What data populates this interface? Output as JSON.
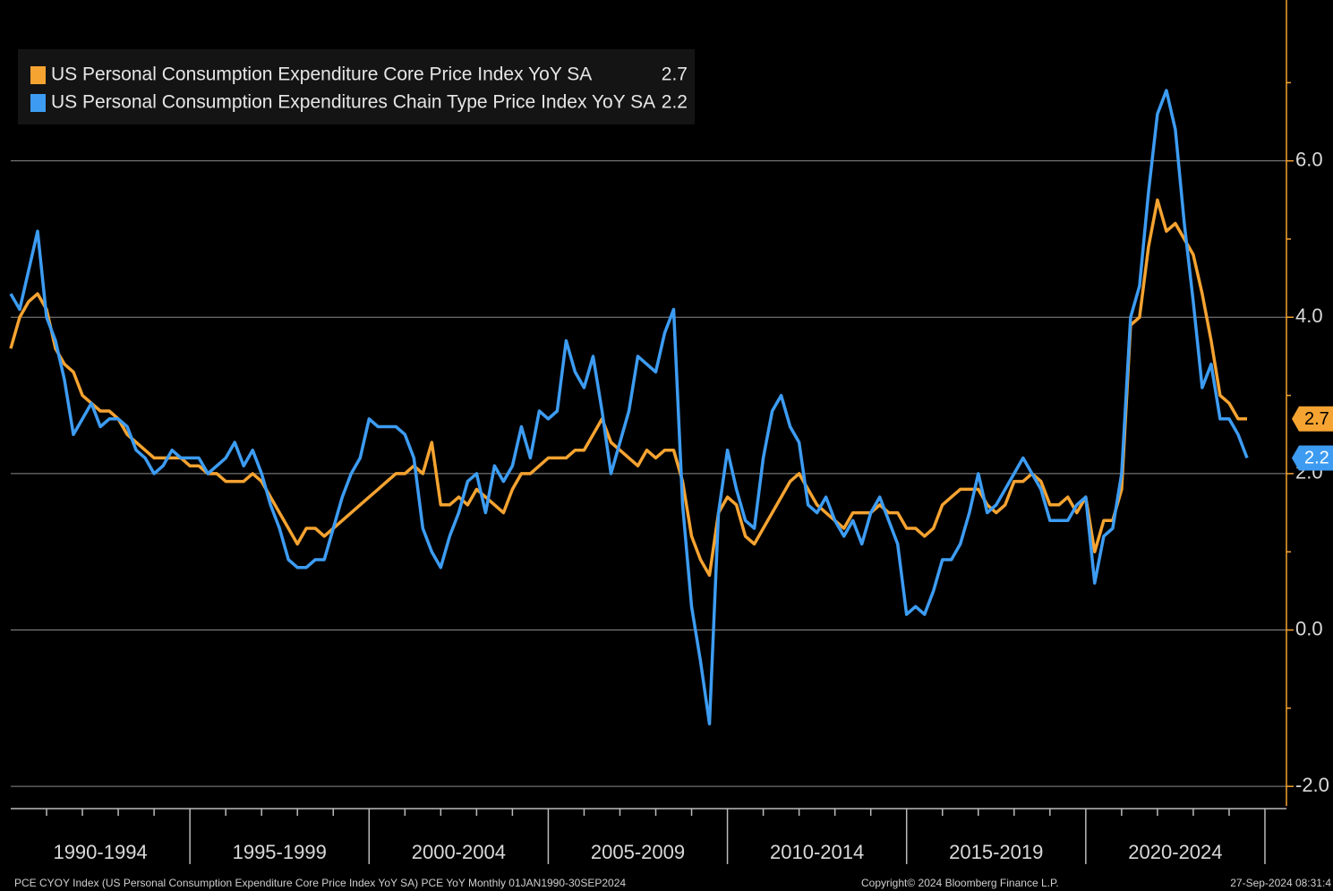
{
  "chart_data": {
    "type": "line",
    "x": [
      1990,
      1990.25,
      1990.5,
      1990.75,
      1991,
      1991.25,
      1991.5,
      1991.75,
      1992,
      1992.25,
      1992.5,
      1992.75,
      1993,
      1993.25,
      1993.5,
      1993.75,
      1994,
      1994.25,
      1994.5,
      1994.75,
      1995,
      1995.25,
      1995.5,
      1995.75,
      1996,
      1996.25,
      1996.5,
      1996.75,
      1997,
      1997.25,
      1997.5,
      1997.75,
      1998,
      1998.25,
      1998.5,
      1998.75,
      1999,
      1999.25,
      1999.5,
      1999.75,
      2000,
      2000.25,
      2000.5,
      2000.75,
      2001,
      2001.25,
      2001.5,
      2001.75,
      2002,
      2002.25,
      2002.5,
      2002.75,
      2003,
      2003.25,
      2003.5,
      2003.75,
      2004,
      2004.25,
      2004.5,
      2004.75,
      2005,
      2005.25,
      2005.5,
      2005.75,
      2006,
      2006.25,
      2006.5,
      2006.75,
      2007,
      2007.25,
      2007.5,
      2007.75,
      2008,
      2008.25,
      2008.5,
      2008.75,
      2009,
      2009.25,
      2009.5,
      2009.75,
      2010,
      2010.25,
      2010.5,
      2010.75,
      2011,
      2011.25,
      2011.5,
      2011.75,
      2012,
      2012.25,
      2012.5,
      2012.75,
      2013,
      2013.25,
      2013.5,
      2013.75,
      2014,
      2014.25,
      2014.5,
      2014.75,
      2015,
      2015.25,
      2015.5,
      2015.75,
      2016,
      2016.25,
      2016.5,
      2016.75,
      2017,
      2017.25,
      2017.5,
      2017.75,
      2018,
      2018.25,
      2018.5,
      2018.75,
      2019,
      2019.25,
      2019.5,
      2019.75,
      2020,
      2020.25,
      2020.5,
      2020.75,
      2021,
      2021.25,
      2021.5,
      2021.75,
      2022,
      2022.25,
      2022.5,
      2022.75,
      2023,
      2023.25,
      2023.5,
      2023.75,
      2024,
      2024.25,
      2024.5
    ],
    "series": [
      {
        "name": "US Personal Consumption Expenditure Core Price Index YoY SA",
        "color": "#f5a331",
        "values": [
          3.6,
          4.0,
          4.2,
          4.3,
          4.1,
          3.6,
          3.4,
          3.3,
          3.0,
          2.9,
          2.8,
          2.8,
          2.7,
          2.5,
          2.4,
          2.3,
          2.2,
          2.2,
          2.2,
          2.2,
          2.1,
          2.1,
          2.0,
          2.0,
          1.9,
          1.9,
          1.9,
          2.0,
          1.9,
          1.7,
          1.5,
          1.3,
          1.1,
          1.3,
          1.3,
          1.2,
          1.3,
          1.4,
          1.5,
          1.6,
          1.7,
          1.8,
          1.9,
          2.0,
          2.0,
          2.1,
          2.0,
          2.4,
          1.6,
          1.6,
          1.7,
          1.6,
          1.8,
          1.7,
          1.6,
          1.5,
          1.8,
          2.0,
          2.0,
          2.1,
          2.2,
          2.2,
          2.2,
          2.3,
          2.3,
          2.5,
          2.7,
          2.4,
          2.3,
          2.2,
          2.1,
          2.3,
          2.2,
          2.3,
          2.3,
          1.9,
          1.2,
          0.9,
          0.7,
          1.5,
          1.7,
          1.6,
          1.2,
          1.1,
          1.3,
          1.5,
          1.7,
          1.9,
          2.0,
          1.8,
          1.6,
          1.5,
          1.4,
          1.3,
          1.5,
          1.5,
          1.5,
          1.6,
          1.5,
          1.5,
          1.3,
          1.3,
          1.2,
          1.3,
          1.6,
          1.7,
          1.8,
          1.8,
          1.8,
          1.6,
          1.5,
          1.6,
          1.9,
          1.9,
          2.0,
          1.9,
          1.6,
          1.6,
          1.7,
          1.5,
          1.7,
          1.0,
          1.4,
          1.4,
          1.8,
          3.9,
          4.0,
          4.9,
          5.5,
          5.1,
          5.2,
          5.0,
          4.8,
          4.3,
          3.7,
          3.0,
          2.9,
          2.7,
          2.7
        ]
      },
      {
        "name": "US Personal Consumption Expenditures Chain Type Price Index YoY SA",
        "color": "#3d9cf2",
        "values": [
          4.3,
          4.1,
          4.6,
          5.1,
          4.0,
          3.7,
          3.2,
          2.5,
          2.7,
          2.9,
          2.6,
          2.7,
          2.7,
          2.6,
          2.3,
          2.2,
          2.0,
          2.1,
          2.3,
          2.2,
          2.2,
          2.2,
          2.0,
          2.1,
          2.2,
          2.4,
          2.1,
          2.3,
          2.0,
          1.6,
          1.3,
          0.9,
          0.8,
          0.8,
          0.9,
          0.9,
          1.3,
          1.7,
          2.0,
          2.2,
          2.7,
          2.6,
          2.6,
          2.6,
          2.5,
          2.2,
          1.3,
          1.0,
          0.8,
          1.2,
          1.5,
          1.9,
          2.0,
          1.5,
          2.1,
          1.9,
          2.1,
          2.6,
          2.2,
          2.8,
          2.7,
          2.8,
          3.7,
          3.3,
          3.1,
          3.5,
          2.8,
          2.0,
          2.4,
          2.8,
          3.5,
          3.4,
          3.3,
          3.8,
          4.1,
          1.6,
          0.3,
          -0.4,
          -1.2,
          1.5,
          2.3,
          1.8,
          1.4,
          1.3,
          2.2,
          2.8,
          3.0,
          2.6,
          2.4,
          1.6,
          1.5,
          1.7,
          1.4,
          1.2,
          1.4,
          1.1,
          1.5,
          1.7,
          1.4,
          1.1,
          0.2,
          0.3,
          0.2,
          0.5,
          0.9,
          0.9,
          1.1,
          1.5,
          2.0,
          1.5,
          1.6,
          1.8,
          2.0,
          2.2,
          2.0,
          1.8,
          1.4,
          1.4,
          1.4,
          1.6,
          1.7,
          0.6,
          1.2,
          1.3,
          2.0,
          4.0,
          4.4,
          5.6,
          6.6,
          6.9,
          6.4,
          5.2,
          4.2,
          3.1,
          3.4,
          2.7,
          2.7,
          2.5,
          2.2
        ]
      }
    ],
    "xlim": [
      1990,
      2025.6
    ],
    "x_bands": [
      {
        "start": 1990,
        "end": 1995,
        "label": "1990-1994"
      },
      {
        "start": 1995,
        "end": 2000,
        "label": "1995-1999"
      },
      {
        "start": 2000,
        "end": 2005,
        "label": "2000-2004"
      },
      {
        "start": 2005,
        "end": 2010,
        "label": "2005-2009"
      },
      {
        "start": 2010,
        "end": 2015,
        "label": "2010-2014"
      },
      {
        "start": 2015,
        "end": 2020,
        "label": "2015-2019"
      },
      {
        "start": 2020,
        "end": 2025,
        "label": "2020-2024"
      }
    ],
    "xminor": [
      1991,
      1992,
      1993,
      1994,
      1996,
      1997,
      1998,
      1999,
      2001,
      2002,
      2003,
      2004,
      2006,
      2007,
      2008,
      2009,
      2011,
      2012,
      2013,
      2014,
      2016,
      2017,
      2018,
      2019,
      2021,
      2022,
      2023,
      2024
    ],
    "ylim": [
      -2.25,
      8
    ],
    "yticks": [
      {
        "value": -2,
        "label": "-2.0"
      },
      {
        "value": 0,
        "label": "0.0"
      },
      {
        "value": 2,
        "label": "2.0"
      },
      {
        "value": 4,
        "label": "4.0"
      },
      {
        "value": 6,
        "label": "6.0"
      }
    ],
    "yminor": [
      -1,
      1,
      3,
      5,
      7
    ],
    "y_axis_side": "right",
    "grid": true,
    "legend": "upper left",
    "footer_left": "PCE CYOY Index (US Personal Consumption Expenditure Core Price Index YoY SA) PCE YoY  Monthly 01JAN1990-30SEP2024",
    "footer_center": "Copyright© 2024 Bloomberg Finance L.P.",
    "footer_right": "27-Sep-2024 08:31:4"
  }
}
